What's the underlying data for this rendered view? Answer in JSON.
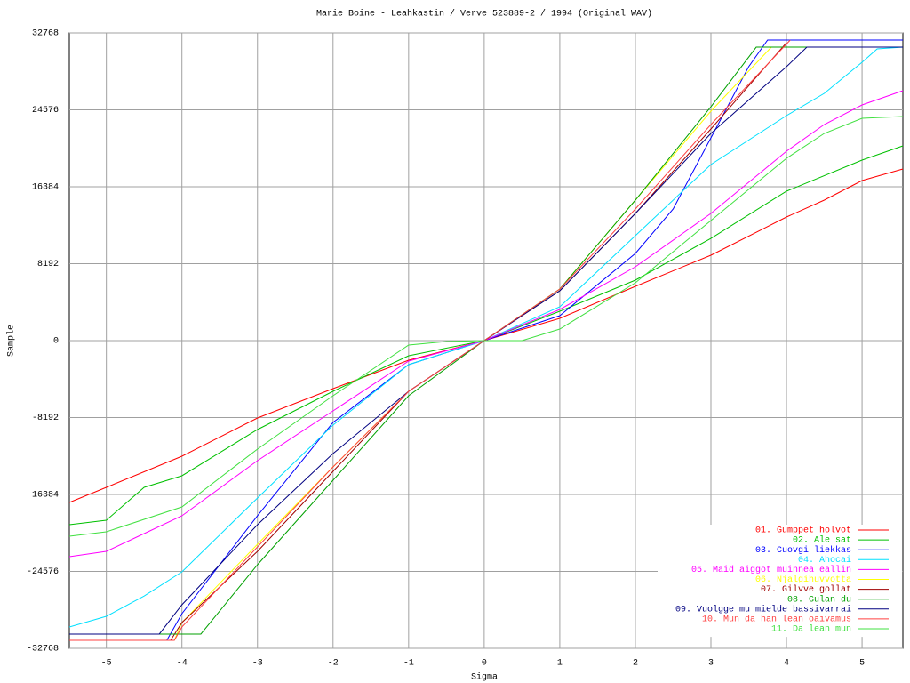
{
  "chart_data": {
    "type": "line",
    "title": "Marie Boine - Leahkastin / Verve 523889-2 / 1994 (Original WAV)",
    "x_label": "Sigma",
    "y_label": "Sample",
    "xlim": [
      -5.49,
      5.54
    ],
    "ylim": [
      -32768,
      32768
    ],
    "xticks": [
      -5,
      -4,
      -3,
      -2,
      -1,
      0,
      1,
      2,
      3,
      4,
      5
    ],
    "yticks": [
      -32768,
      -24576,
      -16384,
      -8192,
      0,
      8192,
      16384,
      24576,
      32768
    ],
    "grid": true,
    "legend": "bottom-right",
    "series": [
      {
        "name": "01. Gumppet holvot",
        "color": "#ff0000",
        "x": [
          -5.49,
          -5,
          -4,
          -3,
          -2,
          -1,
          0,
          1,
          2,
          3,
          4,
          4.5,
          5,
          5.54
        ],
        "values": [
          -17236,
          -15625,
          -12311,
          -8240,
          -5114,
          -2083,
          0,
          2368,
          5777,
          9091,
          13163,
          14963,
          17046,
          18277
        ]
      },
      {
        "name": "02. Ale sat",
        "color": "#00c000",
        "x": [
          -5.49,
          -5,
          -4.5,
          -4,
          -3,
          -2,
          -1,
          0,
          1,
          2,
          3,
          4,
          5,
          5.54
        ],
        "values": [
          -19603,
          -19130,
          -15625,
          -14394,
          -9470,
          -5398,
          -1610,
          0,
          3125,
          6440,
          10890,
          15910,
          19224,
          20739
        ]
      },
      {
        "name": "03. Cuovgi liekkas",
        "color": "#0000ff",
        "x": [
          -5.49,
          -4.2,
          -4,
          -3,
          -2,
          -1,
          0,
          1,
          2,
          2.5,
          3,
          3.5,
          3.75,
          5.54
        ],
        "values": [
          -31914,
          -31914,
          -29073,
          -18656,
          -8712,
          -2557,
          0,
          2652,
          9281,
          14016,
          21592,
          29168,
          32010,
          32010
        ]
      },
      {
        "name": "04. Ahocai",
        "color": "#00e0ff",
        "x": [
          -5.49,
          -5,
          -4.5,
          -4,
          -3,
          -2,
          -1,
          0,
          1,
          2,
          3,
          4,
          4.5,
          5,
          5.2,
          5.54
        ],
        "values": [
          -30492,
          -29356,
          -27200,
          -24622,
          -16762,
          -8996,
          -2557,
          0,
          3599,
          11175,
          18751,
          23960,
          26327,
          29641,
          31062,
          31251
        ]
      },
      {
        "name": "05. Maid aiggot muinnea eallin",
        "color": "#ff00ff",
        "x": [
          -5.49,
          -5,
          -4.5,
          -4,
          -3,
          -2,
          -1,
          0,
          1,
          2,
          3,
          4,
          4.5,
          5,
          5.54
        ],
        "values": [
          -23012,
          -22444,
          -20550,
          -18656,
          -12784,
          -7481,
          -2178,
          0,
          3315,
          7860,
          13542,
          20171,
          23012,
          25096,
          26611
        ]
      },
      {
        "name": "06. Njalgihuvvotta",
        "color": "#ffff00",
        "x": [
          -4.1,
          -4,
          -3,
          -2,
          -1,
          0,
          1,
          2,
          3,
          3.8
        ],
        "values": [
          -31914,
          -30019,
          -21686,
          -13447,
          -5398,
          0,
          5493,
          14963,
          24433,
          31251
        ]
      },
      {
        "name": "07. Gilvve gollat",
        "color": "#a00000",
        "x": [
          -4.15,
          -4,
          -3,
          -2,
          -1,
          0,
          1,
          2,
          3,
          4
        ],
        "values": [
          -31914,
          -30019,
          -22444,
          -13921,
          -5398,
          0,
          5304,
          13542,
          22539,
          31724
        ]
      },
      {
        "name": "08. Gulan du",
        "color": "#00a000",
        "x": [
          -5.49,
          -3.75,
          -3,
          -2,
          -1,
          0,
          1,
          2,
          3,
          3.6,
          5.54
        ],
        "values": [
          -31251,
          -31251,
          -23865,
          -14868,
          -5871,
          0,
          5493,
          14963,
          24906,
          31251,
          31251
        ]
      },
      {
        "name": "09. Vuolgge mu mielde bassivarrai",
        "color": "#000080",
        "x": [
          -5.49,
          -4.3,
          -4,
          -3,
          -2,
          -1,
          0,
          1,
          2,
          3,
          4,
          4.27,
          5.54
        ],
        "values": [
          -31251,
          -31251,
          -28126,
          -19603,
          -12027,
          -5398,
          0,
          5304,
          13542,
          22065,
          29168,
          31251,
          31251
        ]
      },
      {
        "name": "10. Mun da han lean oaivamus",
        "color": "#ff4040",
        "x": [
          -5.49,
          -4.1,
          -4,
          -3,
          -2,
          -1,
          0,
          1,
          2,
          3,
          4.05
        ],
        "values": [
          -31914,
          -31914,
          -30492,
          -21970,
          -13447,
          -5398,
          0,
          5493,
          14016,
          23012,
          32010
        ]
      },
      {
        "name": "11. Da lean mun",
        "color": "#40e040",
        "x": [
          -5.49,
          -5,
          -4,
          -3,
          -2,
          -1,
          -0.5,
          0,
          0.5,
          1,
          2,
          3,
          4,
          4.5,
          5,
          5.54
        ],
        "values": [
          -20834,
          -20360,
          -17709,
          -11553,
          -5871,
          -473,
          -100,
          0,
          0,
          1231,
          6155,
          12784,
          19413,
          22065,
          23675,
          23864
        ]
      }
    ]
  }
}
